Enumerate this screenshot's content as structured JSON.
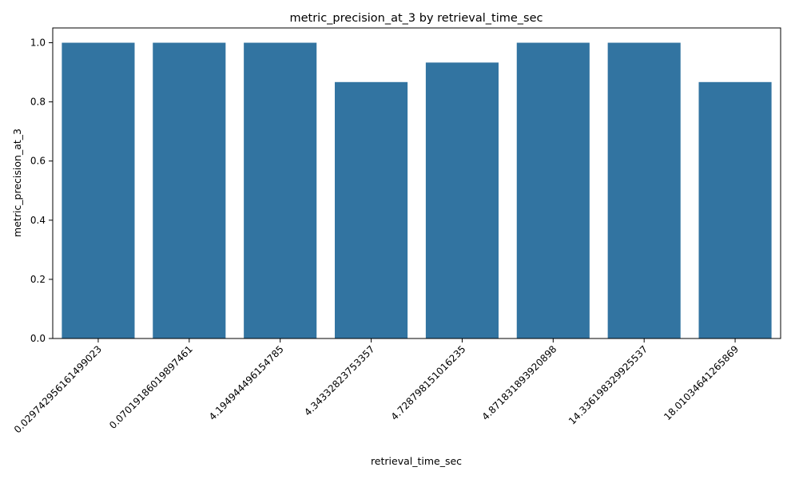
{
  "chart_data": {
    "type": "bar",
    "title": "metric_precision_at_3 by retrieval_time_sec",
    "xlabel": "retrieval_time_sec",
    "ylabel": "metric_precision_at_3",
    "categories": [
      "0.029742956161499023",
      "0.07019186019897461",
      "4.194944496154785",
      "4.34332823753357",
      "4.728798151016235",
      "4.871831893920898",
      "14.336198329925537",
      "18.01034641265869"
    ],
    "values": [
      1.0,
      1.0,
      1.0,
      0.867,
      0.933,
      1.0,
      1.0,
      0.867
    ],
    "ylim": [
      0,
      1.05
    ],
    "yticks": [
      "0.0",
      "0.2",
      "0.4",
      "0.6",
      "0.8",
      "1.0"
    ],
    "bar_color": "#3274a1",
    "grid": false,
    "legend": "none"
  }
}
